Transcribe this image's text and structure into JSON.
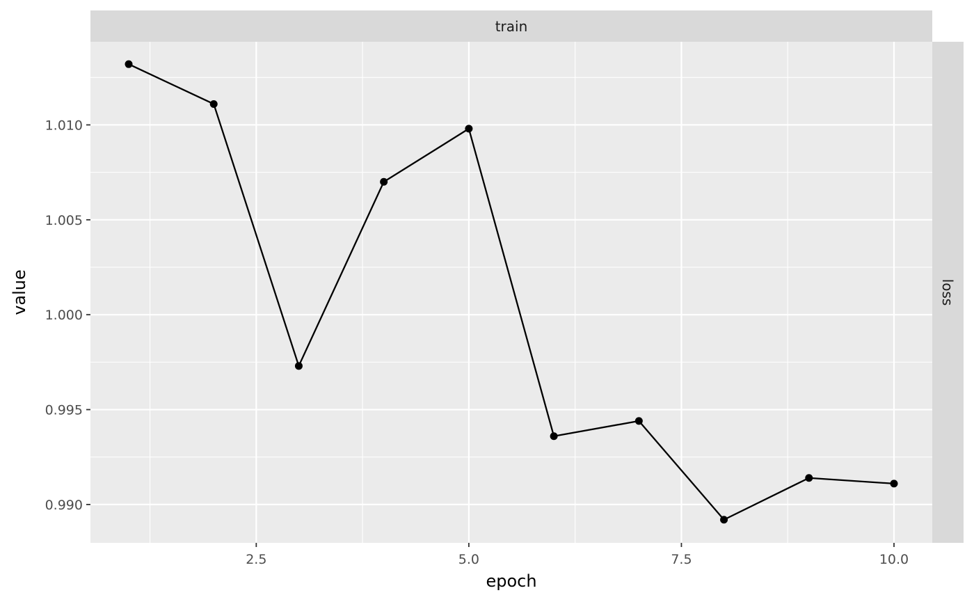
{
  "chart_data": {
    "type": "line",
    "xlabel": "epoch",
    "ylabel": "value",
    "facet_top": "train",
    "facet_right": "loss",
    "x": [
      1,
      2,
      3,
      4,
      5,
      6,
      7,
      8,
      9,
      10
    ],
    "series": [
      {
        "values": [
          1.0132,
          1.0111,
          0.9973,
          1.007,
          1.0098,
          0.9936,
          0.9944,
          0.9892,
          0.9914,
          0.9911
        ]
      }
    ],
    "xlim": [
      0.55,
      10.45
    ],
    "ylim": [
      0.98798,
      1.01438
    ],
    "x_ticks": [
      2.5,
      5.0,
      7.5,
      10.0
    ],
    "x_tick_labels": [
      "2.5",
      "5.0",
      "7.5",
      "10.0"
    ],
    "y_ticks": [
      0.99,
      0.995,
      1.0,
      1.005,
      1.01
    ],
    "y_tick_labels": [
      "0.990",
      "0.995",
      "1.000",
      "1.005",
      "1.010"
    ],
    "grid": true,
    "colors": {
      "panel_background": "#ebebeb",
      "grid": "#ffffff",
      "strip_background": "#d9d9d9",
      "line": "#000000",
      "point": "#000000"
    }
  }
}
